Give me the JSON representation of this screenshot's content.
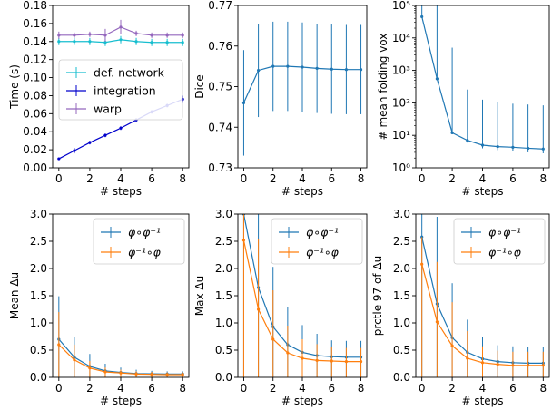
{
  "chart_data": [
    {
      "type": "line",
      "ylabel": "Time (s)",
      "xlabel": "# steps",
      "xlim": [
        -0.4,
        8.4
      ],
      "ylim": [
        0.0,
        0.18
      ],
      "yscale": "linear",
      "xticks": [
        "0",
        "2",
        "4",
        "6",
        "8"
      ],
      "yticks": [
        "0.00",
        "0.02",
        "0.04",
        "0.06",
        "0.08",
        "0.10",
        "0.12",
        "0.14",
        "0.16",
        "0.18"
      ],
      "legend_position": "center-right",
      "series": [
        {
          "name": "def. network",
          "color": "#17becf",
          "x": [
            0,
            1,
            2,
            3,
            4,
            5,
            6,
            7,
            8
          ],
          "y": [
            0.14,
            0.14,
            0.14,
            0.139,
            0.142,
            0.14,
            0.139,
            0.139,
            0.139
          ],
          "err": [
            0.004,
            0.004,
            0.004,
            0.004,
            0.004,
            0.004,
            0.004,
            0.004,
            0.004
          ]
        },
        {
          "name": "integration",
          "color": "#0000cc",
          "x": [
            0,
            1,
            2,
            3,
            4,
            5,
            6,
            7,
            8
          ],
          "y": [
            0.01,
            0.019,
            0.028,
            0.036,
            0.044,
            0.053,
            0.062,
            0.069,
            0.076
          ],
          "err": [
            0.001,
            0.003,
            0.002,
            0.002,
            0.002,
            0.002,
            0.002,
            0.002,
            0.004
          ]
        },
        {
          "name": "warp",
          "color": "#9467bd",
          "x": [
            0,
            1,
            2,
            3,
            4,
            5,
            6,
            7,
            8
          ],
          "y": [
            0.147,
            0.147,
            0.148,
            0.147,
            0.156,
            0.149,
            0.147,
            0.147,
            0.147
          ],
          "err": [
            0.004,
            0.003,
            0.003,
            0.007,
            0.008,
            0.003,
            0.003,
            0.003,
            0.003
          ]
        }
      ]
    },
    {
      "type": "line",
      "ylabel": "Dice",
      "xlabel": "# steps",
      "xlim": [
        -0.4,
        8.4
      ],
      "ylim": [
        0.73,
        0.77
      ],
      "yscale": "linear",
      "xticks": [
        "0",
        "2",
        "4",
        "6",
        "8"
      ],
      "yticks": [
        "0.73",
        "0.74",
        "0.75",
        "0.76",
        "0.77"
      ],
      "series": [
        {
          "name": "",
          "color": "#1f77b4",
          "x": [
            0,
            1,
            2,
            3,
            4,
            5,
            6,
            7,
            8
          ],
          "y": [
            0.746,
            0.754,
            0.755,
            0.755,
            0.7548,
            0.7545,
            0.7543,
            0.7542,
            0.7542
          ],
          "err": [
            0.013,
            0.0115,
            0.011,
            0.011,
            0.011,
            0.011,
            0.011,
            0.011,
            0.011
          ]
        }
      ]
    },
    {
      "type": "line",
      "ylabel": "# mean folding vox",
      "xlabel": "# steps",
      "xlim": [
        -0.4,
        8.4
      ],
      "ylim": [
        1,
        100000
      ],
      "yscale": "log",
      "xticks": [
        "0",
        "2",
        "4",
        "6",
        "8"
      ],
      "yticks": [
        "10^0",
        "10^1",
        "10^2",
        "10^3",
        "10^4",
        "10^5"
      ],
      "series": [
        {
          "name": "",
          "color": "#1f77b4",
          "x": [
            0,
            1,
            2,
            3,
            4,
            5,
            6,
            7,
            8
          ],
          "y": [
            45000,
            550,
            12,
            7,
            5,
            4.5,
            4.3,
            4.0,
            3.8
          ],
          "err_low": [
            3.5,
            1,
            1,
            1,
            1,
            1,
            1,
            1,
            1
          ],
          "err_high": [
            100000,
            100000,
            5000,
            250,
            120,
            100,
            90,
            85,
            80
          ]
        }
      ]
    },
    {
      "type": "line",
      "ylabel": "Mean Δu",
      "xlabel": "# steps",
      "xlim": [
        -0.4,
        8.4
      ],
      "ylim": [
        0.0,
        3.0
      ],
      "yscale": "linear",
      "xticks": [
        "0",
        "2",
        "4",
        "6",
        "8"
      ],
      "yticks": [
        "0.0",
        "0.5",
        "1.0",
        "1.5",
        "2.0",
        "2.5",
        "3.0"
      ],
      "legend_position": "top-right",
      "series": [
        {
          "name": "φ∘φ⁻¹",
          "color": "#1f77b4",
          "x": [
            0,
            1,
            2,
            3,
            4,
            5,
            6,
            7,
            8
          ],
          "y": [
            0.7,
            0.37,
            0.2,
            0.12,
            0.09,
            0.07,
            0.065,
            0.06,
            0.06
          ],
          "err_low": [
            0.7,
            0.37,
            0.2,
            0.12,
            0.09,
            0.07,
            0.065,
            0.06,
            0.06
          ],
          "err_high": [
            0.79,
            0.38,
            0.23,
            0.13,
            0.09,
            0.07,
            0.055,
            0.05,
            0.05
          ]
        },
        {
          "name": "φ⁻¹∘φ",
          "color": "#ff7f0e",
          "x": [
            0,
            1,
            2,
            3,
            4,
            5,
            6,
            7,
            8
          ],
          "y": [
            0.6,
            0.32,
            0.17,
            0.1,
            0.08,
            0.06,
            0.055,
            0.05,
            0.05
          ],
          "err_low": [
            0.6,
            0.32,
            0.17,
            0.1,
            0.08,
            0.06,
            0.055,
            0.05,
            0.05
          ],
          "err_high": [
            0.6,
            0.28,
            0.13,
            0.08,
            0.06,
            0.05,
            0.045,
            0.04,
            0.04
          ]
        }
      ]
    },
    {
      "type": "line",
      "ylabel": "Max Δu",
      "xlabel": "# steps",
      "xlim": [
        -0.4,
        8.4
      ],
      "ylim": [
        0.0,
        3.0
      ],
      "yscale": "linear",
      "xticks": [
        "0",
        "2",
        "4",
        "6",
        "8"
      ],
      "yticks": [
        "0.0",
        "0.5",
        "1.0",
        "1.5",
        "2.0",
        "2.5",
        "3.0"
      ],
      "legend_position": "top-right",
      "series": [
        {
          "name": "φ∘φ⁻¹",
          "color": "#1f77b4",
          "x": [
            0,
            1,
            2,
            3,
            4,
            5,
            6,
            7,
            8
          ],
          "y": [
            3.0,
            1.65,
            0.93,
            0.6,
            0.46,
            0.4,
            0.38,
            0.37,
            0.37
          ],
          "err_low": [
            3.0,
            1.65,
            0.93,
            0.6,
            0.46,
            0.4,
            0.38,
            0.37,
            0.37
          ],
          "err_high": [
            0.5,
            1.6,
            1.1,
            0.7,
            0.5,
            0.4,
            0.3,
            0.3,
            0.3
          ]
        },
        {
          "name": "φ⁻¹∘φ",
          "color": "#ff7f0e",
          "x": [
            0,
            1,
            2,
            3,
            4,
            5,
            6,
            7,
            8
          ],
          "y": [
            2.52,
            1.25,
            0.7,
            0.45,
            0.35,
            0.31,
            0.3,
            0.29,
            0.29
          ],
          "err_low": [
            2.52,
            1.25,
            0.7,
            0.45,
            0.35,
            0.31,
            0.3,
            0.29,
            0.29
          ],
          "err_high": [
            0.5,
            1.3,
            0.9,
            0.5,
            0.35,
            0.3,
            0.25,
            0.25,
            0.25
          ]
        }
      ]
    },
    {
      "type": "line",
      "ylabel": "prctle 97 of Δu",
      "xlabel": "# steps",
      "xlim": [
        -0.4,
        8.4
      ],
      "ylim": [
        0.0,
        3.0
      ],
      "yscale": "linear",
      "xticks": [
        "0",
        "2",
        "4",
        "6",
        "8"
      ],
      "yticks": [
        "0.0",
        "0.5",
        "1.0",
        "1.5",
        "2.0",
        "2.5",
        "3.0"
      ],
      "legend_position": "top-right",
      "series": [
        {
          "name": "φ∘φ⁻¹",
          "color": "#1f77b4",
          "x": [
            0,
            1,
            2,
            3,
            4,
            5,
            6,
            7,
            8
          ],
          "y": [
            2.58,
            1.35,
            0.73,
            0.46,
            0.34,
            0.29,
            0.27,
            0.26,
            0.26
          ],
          "err_low": [
            2.58,
            1.35,
            0.73,
            0.46,
            0.34,
            0.29,
            0.27,
            0.26,
            0.26
          ],
          "err_high": [
            0.5,
            1.6,
            1.0,
            0.6,
            0.4,
            0.3,
            0.3,
            0.3,
            0.3
          ]
        },
        {
          "name": "φ⁻¹∘φ",
          "color": "#ff7f0e",
          "x": [
            0,
            1,
            2,
            3,
            4,
            5,
            6,
            7,
            8
          ],
          "y": [
            2.08,
            1.02,
            0.58,
            0.35,
            0.27,
            0.24,
            0.22,
            0.22,
            0.22
          ],
          "err_low": [
            2.08,
            1.02,
            0.58,
            0.35,
            0.27,
            0.24,
            0.22,
            0.22,
            0.22
          ],
          "err_high": [
            0.5,
            1.1,
            0.8,
            0.5,
            0.3,
            0.25,
            0.25,
            0.25,
            0.25
          ]
        }
      ]
    }
  ]
}
